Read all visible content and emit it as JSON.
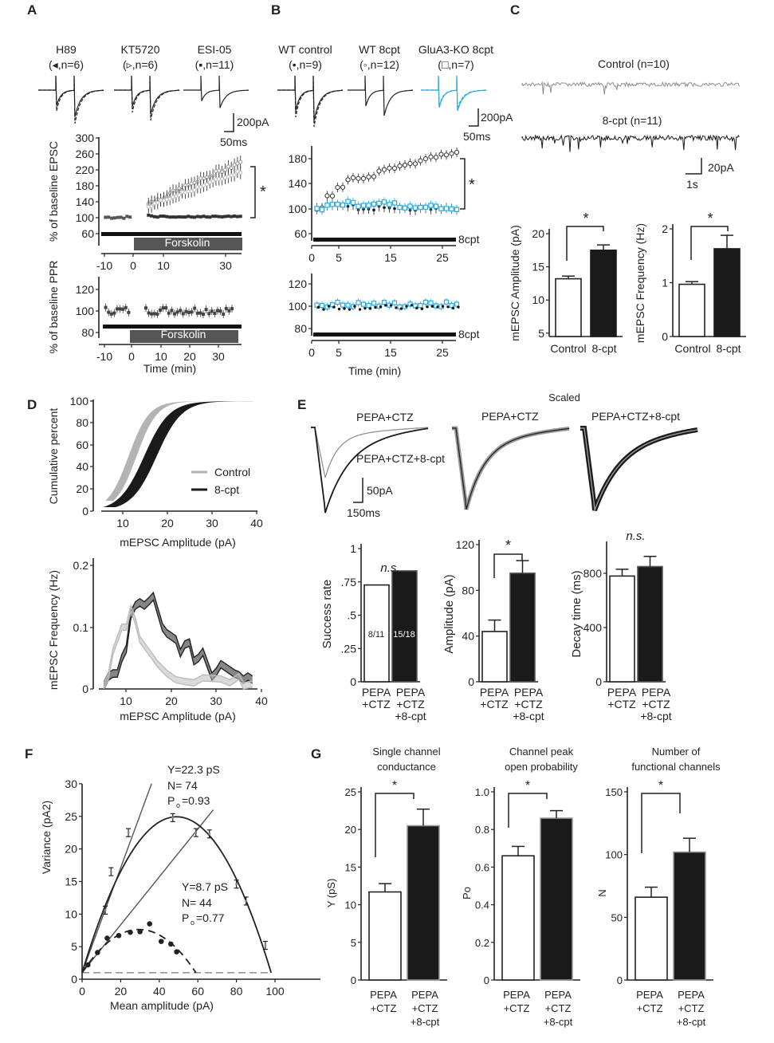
{
  "panels": {
    "A": {
      "label": "A",
      "conditions": [
        {
          "name": "H89",
          "legend": "(◂,n=6)"
        },
        {
          "name": "KT5720",
          "legend": "(▹,n=6)"
        },
        {
          "name": "ESI-05",
          "legend": "(▪,n=11)"
        }
      ],
      "scalebar": {
        "y": "200pA",
        "x": "50ms"
      },
      "epsc": {
        "ylabel": "% of baseline EPSC",
        "yticks": [
          "300",
          "260",
          "220",
          "180",
          "140",
          "100",
          "60"
        ],
        "xticks": [
          "-10",
          "0",
          "10",
          "30"
        ],
        "bar_label": "Forskolin",
        "significance": "*"
      },
      "ppr": {
        "ylabel": "% of baseline PPR",
        "yticks": [
          "120",
          "100",
          "80"
        ],
        "xticks": [
          "-10",
          "0",
          "10",
          "20",
          "30"
        ],
        "bar_label": "Forskolin"
      },
      "xlabel": "Time (min)"
    },
    "B": {
      "label": "B",
      "conditions": [
        {
          "name": "WT control",
          "legend": "(•,n=9)"
        },
        {
          "name": "WT 8cpt",
          "legend": "(◦,n=12)"
        },
        {
          "name": "GluA3-KO 8cpt",
          "legend": "(□,n=7)"
        }
      ],
      "scalebar": {
        "y": "200pA",
        "x": "50ms"
      },
      "epsc": {
        "yticks": [
          "180",
          "140",
          "100",
          "60"
        ],
        "xticks": [
          "0",
          "5",
          "15",
          "25"
        ],
        "bar_label": "8cpt",
        "significance": "*"
      },
      "ppr": {
        "yticks": [
          "120",
          "100",
          "80"
        ],
        "xticks": [
          "0",
          "5",
          "15",
          "25"
        ],
        "bar_label": "8cpt"
      },
      "xlabel": "Time (min)",
      "ko_color": "#29abe2"
    },
    "C": {
      "label": "C",
      "traces": [
        {
          "name": "Control (n=10)",
          "color": "#8c8c8c"
        },
        {
          "name": "8-cpt (n=11)",
          "color": "#1a1a1a"
        }
      ],
      "scalebar": {
        "y": "20pA",
        "x": "1s"
      },
      "amp": {
        "ylabel": "mEPSC Amplitude (pA)",
        "yticks": [
          "20",
          "15",
          "10",
          "5"
        ],
        "categories": [
          "Control",
          "8-cpt"
        ],
        "significance": "*"
      },
      "freq": {
        "ylabel": "mEPSC Frequency (Hz)",
        "yticks": [
          "2",
          "1",
          "0"
        ],
        "categories": [
          "Control",
          "8-cpt"
        ],
        "significance": "*"
      }
    },
    "D": {
      "label": "D",
      "cum": {
        "ylabel": "Cumulative percent",
        "xlabel": "mEPSC Amplitude (pA)",
        "yticks": [
          "100",
          "80",
          "60",
          "40",
          "20",
          "0"
        ],
        "xticks": [
          "10",
          "20",
          "30",
          "40"
        ],
        "legend": [
          "Control",
          "8-cpt"
        ]
      },
      "freq": {
        "ylabel": "mEPSC Frequency (Hz)",
        "xlabel": "mEPSC Amplitude (pA)",
        "yticks": [
          "0.2",
          "0.1",
          "0"
        ],
        "xticks": [
          "10",
          "20",
          "30",
          "40"
        ]
      }
    },
    "E": {
      "label": "E",
      "scaled_label": "Scaled",
      "trace_labels": [
        "PEPA+CTZ",
        "PEPA+CTZ+8-cpt",
        "PEPA+CTZ",
        "PEPA+CTZ+8-cpt"
      ],
      "scalebar": {
        "y": "50pA",
        "x": "150ms"
      },
      "bars": [
        {
          "ylabel": "Success rate",
          "yticks": [
            "1",
            ".75",
            ".5",
            ".25",
            "0"
          ],
          "significance": "n.s.",
          "inbar": [
            "8/11",
            "15/18"
          ]
        },
        {
          "ylabel": "Amplitude (pA)",
          "yticks": [
            "120",
            "80",
            "40",
            "0"
          ],
          "significance": "*"
        },
        {
          "ylabel": "Decay time (ms)",
          "yticks": [
            "800",
            "400",
            "0"
          ],
          "significance": "n.s."
        }
      ],
      "cat_lines": [
        [
          "PEPA",
          "+CTZ"
        ],
        [
          "PEPA",
          "+CTZ",
          "+8-cpt"
        ]
      ]
    },
    "F": {
      "label": "F",
      "ylabel": "Variance (pA2)",
      "xlabel": "Mean amplitude (pA)",
      "yticks": [
        "30",
        "25",
        "20",
        "15",
        "10",
        "5",
        "0"
      ],
      "xticks": [
        "0",
        "20",
        "40",
        "60",
        "80",
        "100"
      ],
      "fit1": [
        "Y=22.3 pS",
        "N= 74",
        "P",
        "o",
        "=0.93"
      ],
      "fit2": [
        "Y=8.7 pS",
        "N= 44",
        "P",
        "o",
        "=0.77"
      ]
    },
    "G": {
      "label": "G",
      "bars": [
        {
          "title": [
            "Single channel",
            "conductance"
          ],
          "ylabel": "Y (pS)",
          "yticks": [
            "25",
            "20",
            "15",
            "10",
            "5",
            "0"
          ],
          "significance": "*"
        },
        {
          "title": [
            "Channel peak",
            "open probability"
          ],
          "ylabel": "Po",
          "yticks": [
            "1.0",
            "0.8",
            "0.6",
            "0.4",
            "0.2",
            "0"
          ],
          "significance": "*"
        },
        {
          "title": [
            "Number of",
            "functional channels"
          ],
          "ylabel": "N",
          "yticks": [
            "150",
            "100",
            "50",
            "0"
          ],
          "significance": "*"
        }
      ],
      "cat_lines": [
        [
          "PEPA",
          "+CTZ"
        ],
        [
          "PEPA",
          "+CTZ",
          "+8-cpt"
        ]
      ]
    }
  },
  "chart_data": [
    {
      "id": "C-amp",
      "type": "bar",
      "title": "",
      "categories": [
        "Control",
        "8-cpt"
      ],
      "values": [
        13.2,
        17.5
      ],
      "errors": [
        0.4,
        0.8
      ],
      "ylabel": "mEPSC Amplitude (pA)",
      "ylim": [
        5,
        20
      ]
    },
    {
      "id": "C-freq",
      "type": "bar",
      "categories": [
        "Control",
        "8-cpt"
      ],
      "values": [
        0.97,
        1.63
      ],
      "errors": [
        0.05,
        0.25
      ],
      "ylabel": "mEPSC Frequency (Hz)",
      "ylim": [
        0,
        2
      ]
    },
    {
      "id": "E-success",
      "type": "bar",
      "categories": [
        "PEPA+CTZ",
        "PEPA+CTZ+8-cpt"
      ],
      "values": [
        0.727,
        0.833
      ],
      "ylabel": "Success rate",
      "ylim": [
        0,
        1
      ]
    },
    {
      "id": "E-amp",
      "type": "bar",
      "categories": [
        "PEPA+CTZ",
        "PEPA+CTZ+8-cpt"
      ],
      "values": [
        44,
        95
      ],
      "errors": [
        10,
        11
      ],
      "ylabel": "Amplitude (pA)",
      "ylim": [
        0,
        120
      ]
    },
    {
      "id": "E-decay",
      "type": "bar",
      "categories": [
        "PEPA+CTZ",
        "PEPA+CTZ+8-cpt"
      ],
      "values": [
        780,
        850
      ],
      "errors": [
        50,
        75
      ],
      "ylabel": "Decay time (ms)",
      "ylim": [
        0,
        1000
      ]
    },
    {
      "id": "G-gamma",
      "type": "bar",
      "categories": [
        "PEPA+CTZ",
        "PEPA+CTZ+8-cpt"
      ],
      "values": [
        11.7,
        20.5
      ],
      "errors": [
        1.1,
        2.2
      ],
      "ylabel": "Y (pS)",
      "ylim": [
        0,
        25
      ]
    },
    {
      "id": "G-po",
      "type": "bar",
      "categories": [
        "PEPA+CTZ",
        "PEPA+CTZ+8-cpt"
      ],
      "values": [
        0.66,
        0.86
      ],
      "errors": [
        0.05,
        0.04
      ],
      "ylabel": "Po",
      "ylim": [
        0,
        1.0
      ]
    },
    {
      "id": "G-n",
      "type": "bar",
      "categories": [
        "PEPA+CTZ",
        "PEPA+CTZ+8-cpt"
      ],
      "values": [
        66,
        102
      ],
      "errors": [
        8,
        11
      ],
      "ylabel": "N",
      "ylim": [
        0,
        150
      ]
    },
    {
      "id": "F-var",
      "type": "scatter",
      "xlabel": "Mean amplitude (pA)",
      "ylabel": "Variance (pA2)",
      "xlim": [
        0,
        100
      ],
      "ylim": [
        0,
        30
      ],
      "series": [
        {
          "name": "PEPA+CTZ+8-cpt",
          "x": [
            12,
            15,
            24,
            35,
            47,
            59,
            66,
            80,
            85,
            95
          ],
          "y": [
            10.6,
            16.5,
            22.5,
            null,
            24.8,
            22.5,
            22.3,
            14.6,
            12.0,
            5.2
          ]
        },
        {
          "name": "PEPA+CTZ",
          "x": [
            3,
            8,
            13,
            19,
            25,
            30,
            35,
            41,
            46,
            49
          ],
          "y": [
            2.2,
            4.1,
            6.3,
            6.7,
            7.2,
            7.3,
            8.5,
            5.8,
            5.4,
            4.2
          ]
        }
      ]
    },
    {
      "id": "B-epsc",
      "type": "scatter",
      "xlabel": "Time (min)",
      "ylabel": "% of baseline EPSC",
      "xlim": [
        0,
        28
      ],
      "ylim": [
        50,
        190
      ],
      "series": [
        {
          "name": "WT 8cpt",
          "x": [
            1,
            3,
            5,
            7,
            9,
            11,
            13,
            15,
            17,
            19,
            21,
            23,
            25,
            27
          ],
          "y": [
            100,
            120,
            135,
            148,
            150,
            152,
            162,
            165,
            168,
            172,
            178,
            182,
            185,
            188
          ]
        },
        {
          "name": "WT control",
          "x": [
            1,
            3,
            5,
            7,
            9,
            11,
            13,
            15,
            17,
            19,
            21,
            23,
            25,
            27
          ],
          "y": [
            100,
            105,
            104,
            104,
            98,
            100,
            102,
            101,
            100,
            98,
            100,
            101,
            100,
            100
          ]
        },
        {
          "name": "GluA3-KO 8cpt",
          "x": [
            1,
            3,
            5,
            7,
            9,
            11,
            13,
            15,
            17,
            19,
            21,
            23,
            25,
            27
          ],
          "y": [
            100,
            107,
            108,
            110,
            106,
            107,
            110,
            108,
            102,
            103,
            103,
            104,
            102,
            100
          ]
        }
      ]
    }
  ]
}
